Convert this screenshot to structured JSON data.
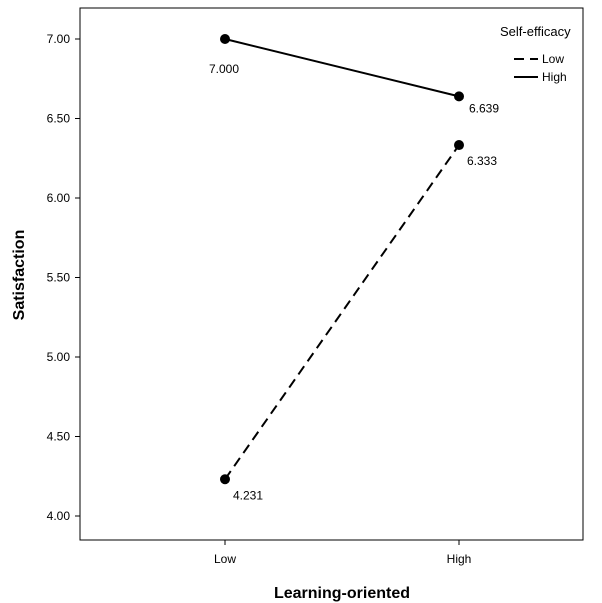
{
  "chart_data": {
    "type": "line",
    "xlabel": "Learning-oriented",
    "ylabel": "Satisfaction",
    "categories": [
      "Low",
      "High"
    ],
    "ylim": [
      4.0,
      7.0
    ],
    "yticks": [
      "4.00",
      "4.50",
      "5.00",
      "5.50",
      "6.00",
      "6.50",
      "7.00"
    ],
    "legend": {
      "title": "Self-efficacy",
      "placement": "top-right"
    },
    "series": [
      {
        "name": "Low",
        "style": "dashed",
        "values": [
          4.231,
          6.333
        ],
        "labels": [
          "4.231",
          "6.333"
        ]
      },
      {
        "name": "High",
        "style": "solid",
        "values": [
          7.0,
          6.639
        ],
        "labels": [
          "7.000",
          "6.639"
        ]
      }
    ],
    "grid": false
  }
}
